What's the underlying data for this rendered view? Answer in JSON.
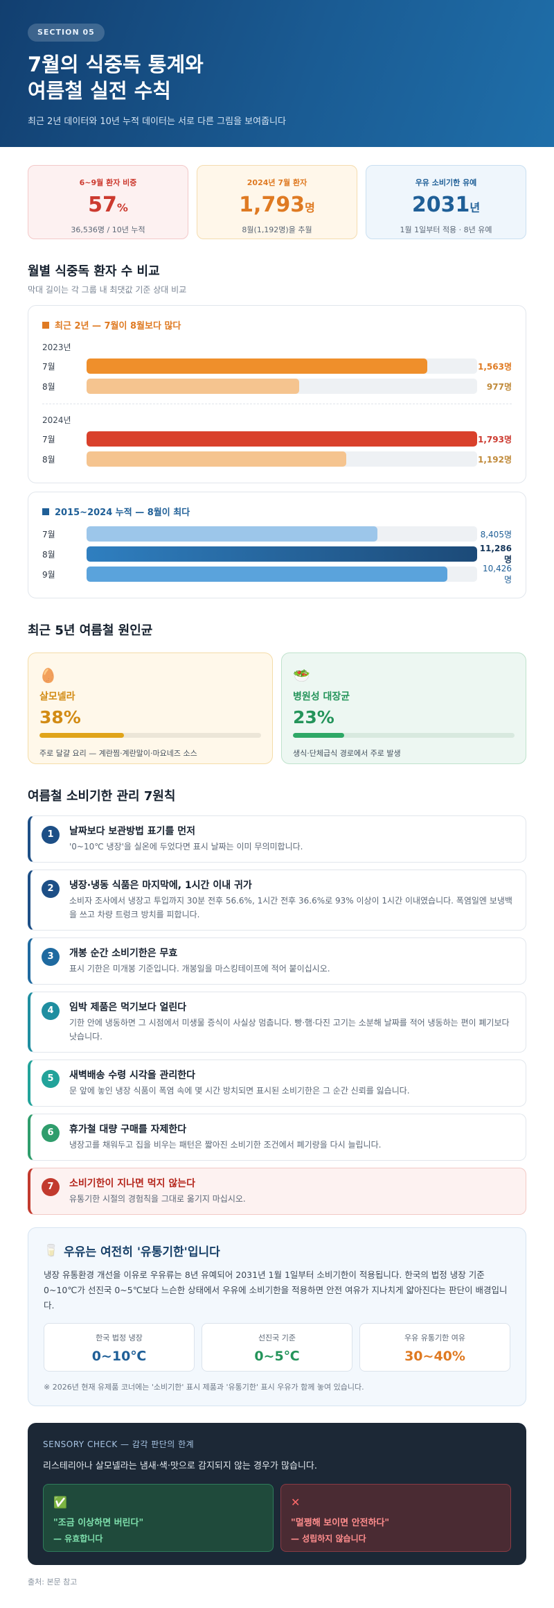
{
  "hero": {
    "badge": "SECTION 05",
    "title_line1": "7월의 식중독 통계와",
    "title_line2": "여름철 실전 수칙",
    "subtitle": "최근 2년 데이터와 10년 누적 데이터는 서로 다른 그림을 보여줍니다"
  },
  "stats": [
    {
      "label": "6~9월 환자 비중",
      "value": "57",
      "unit": "%",
      "sub": "36,536명 / 10년 누적"
    },
    {
      "label": "2024년 7월 환자",
      "value": "1,793",
      "unit": "명",
      "sub": "8월(1,192명)을 추월"
    },
    {
      "label": "우유 소비기한 유예",
      "value": "2031",
      "unit": "년",
      "sub": "1월 1일부터 적용 · 8년 유예"
    }
  ],
  "monthly": {
    "title": "월별 식중독 환자 수 비교",
    "subtitle": "막대 길이는 각 그룹 내 최댓값 기준 상대 비교",
    "recent": {
      "title": "최근 2년 — 7월이 8월보다 많다",
      "years": [
        {
          "year": "2023년",
          "rows": [
            {
              "label": "7월",
              "value": 1563,
              "display": "1,563명"
            },
            {
              "label": "8월",
              "value": 977,
              "display": "977명"
            }
          ]
        },
        {
          "year": "2024년",
          "rows": [
            {
              "label": "7월",
              "value": 1793,
              "display": "1,793명"
            },
            {
              "label": "8월",
              "value": 1192,
              "display": "1,192명"
            }
          ]
        }
      ],
      "max": 1793
    },
    "cumulative": {
      "title": "2015~2024 누적 — 8월이 최다",
      "rows": [
        {
          "label": "7월",
          "value": 8405,
          "display": "8,405명"
        },
        {
          "label": "8월",
          "value": 11286,
          "display": "11,286명"
        },
        {
          "label": "9월",
          "value": 10426,
          "display": "10,426명"
        }
      ],
      "max": 11286
    }
  },
  "pathogens": {
    "title": "최근 5년 여름철 원인균",
    "items": [
      {
        "icon": "🥚",
        "name": "살모넬라",
        "percent": "38%",
        "share": 0.38,
        "desc": "주로 달걀 요리 — 계란찜·계란말이·마요네즈 소스"
      },
      {
        "icon": "🥗",
        "name": "병원성 대장균",
        "percent": "23%",
        "share": 0.23,
        "desc": "생식·단체급식 경로에서 주로 발생"
      }
    ]
  },
  "rules": {
    "title": "여름철 소비기한 관리 7원칙",
    "items": [
      {
        "no": "1",
        "title": "날짜보다 보관방법 표기를 먼저",
        "desc": "'0~10℃ 냉장'을 실온에 두었다면 표시 날짜는 이미 무의미합니다.",
        "color": "#1d4f86"
      },
      {
        "no": "2",
        "title": "냉장·냉동 식품은 마지막에, 1시간 이내 귀가",
        "desc": "소비자 조사에서 냉장고 투입까지 30분 전후 56.6%, 1시간 전후 36.6%로 93% 이상이 1시간 이내였습니다. 폭염일엔 보냉백을 쓰고 차량 트렁크 방치를 피합니다.",
        "color": "#1d4f86"
      },
      {
        "no": "3",
        "title": "개봉 순간 소비기한은 무효",
        "desc": "표시 기한은 미개봉 기준입니다. 개봉일을 마스킹테이프에 적어 붙이십시오.",
        "color": "#1f6aa0"
      },
      {
        "no": "4",
        "title": "임박 제품은 먹기보다 얼린다",
        "desc": "기한 안에 냉동하면 그 시점에서 미생물 증식이 사실상 멈춥니다. 빵·햄·다진 고기는 소분해 날짜를 적어 냉동하는 편이 폐기보다 낫습니다.",
        "color": "#1f8ea0"
      },
      {
        "no": "5",
        "title": "새벽배송 수령 시각을 관리한다",
        "desc": "문 앞에 놓인 냉장 식품이 폭염 속에 몇 시간 방치되면 표시된 소비기한은 그 순간 신뢰를 잃습니다.",
        "color": "#22a39a"
      },
      {
        "no": "6",
        "title": "휴가철 대량 구매를 자제한다",
        "desc": "냉장고를 채워두고 집을 비우는 패턴은 짧아진 소비기한 조건에서 폐기량을 다시 늘립니다.",
        "color": "#2f9d6c"
      },
      {
        "no": "7",
        "title": "소비기한이 지나면 먹지 않는다",
        "desc": "유통기한 시절의 경험칙을 그대로 옮기지 마십시오.",
        "color": "#c23a2e"
      }
    ]
  },
  "milk": {
    "icon": "🥛",
    "title": "우유는 여전히 '유통기한'입니다",
    "body": "냉장 유통환경 개선을 이유로 우유류는 8년 유예되어 2031년 1월 1일부터 소비기한이 적용됩니다. 한국의 법정 냉장 기준 0~10℃가 선진국 0~5℃보다 느슨한 상태에서 우유에 소비기한을 적용하면 안전 여유가 지나치게 얇아진다는 판단이 배경입니다.",
    "boxes": [
      {
        "label": "한국 법정 냉장",
        "value": "0~10℃",
        "color": "#1f5f97"
      },
      {
        "label": "선진국 기준",
        "value": "0~5℃",
        "color": "#24945a"
      },
      {
        "label": "우유 유통기한 여유",
        "value": "30~40%",
        "color": "#df7a22"
      }
    ],
    "note": "※ 2026년 현재 유제품 코너에는 '소비기한' 표시 제품과 '유통기한' 표시 우유가 함께 놓여 있습니다."
  },
  "sensory": {
    "header": "SENSORY CHECK — 감각 판단의 한계",
    "body": "리스테리아나 살모넬라는 냄새·색·맛으로 감지되지 않는 경우가 많습니다.",
    "cards": [
      {
        "icon": "✅",
        "quote": "\"조금 이상하면 버린다\"",
        "verdict": "— 유효합니다"
      },
      {
        "icon": "✕",
        "quote": "\"멀쩡해 보이면 안전하다\"",
        "verdict": "— 성립하지 않습니다"
      }
    ]
  },
  "source": "출처: 본문 참고",
  "colors": {
    "hero_start": "#123f70",
    "hero_end": "#1f6faa",
    "orange": "#df7a22",
    "red": "#cc3a2f",
    "blue": "#1f5f97",
    "green": "#24945a"
  }
}
